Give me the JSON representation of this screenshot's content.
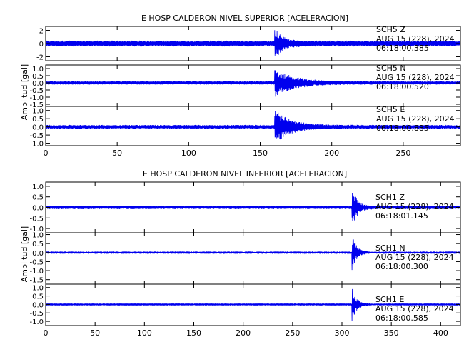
{
  "colors": {
    "trace": "#0000ee",
    "axes": "#000000",
    "background": "#ffffff"
  },
  "chart_data": [
    {
      "type": "line",
      "title": "E HOSP CALDERON NIVEL SUPERIOR [ACELERACION]",
      "ylabel": "Amplitud [gal]",
      "xlabel": "",
      "xlim": [
        0,
        290
      ],
      "x_ticks": [
        "0",
        "50",
        "100",
        "150",
        "200",
        "250"
      ],
      "traces": [
        {
          "station": "SCH5",
          "component": "Z",
          "date": "AUG 15 (228), 2024",
          "time": "06:18:00.385",
          "ylim": [
            -2.6,
            2.6
          ],
          "y_ticks": [
            "2",
            "0",
            "-2"
          ],
          "noise": 0.45,
          "event_x": 160,
          "peak": 2.4,
          "decay_s": 5
        },
        {
          "station": "SCH5",
          "component": "N",
          "date": "AUG 15 (228), 2024",
          "time": "06:18:00.520",
          "ylim": [
            -1.65,
            1.25
          ],
          "y_ticks": [
            "1.0",
            "0.5",
            "0.0",
            "-0.5",
            "-1.0",
            "-1.5"
          ],
          "noise": 0.12,
          "event_x": 160,
          "peak": 1.0,
          "decay_s": 13
        },
        {
          "station": "SCH5",
          "component": "E",
          "date": "AUG 15 (228), 2024",
          "time": "06:18:00.885",
          "ylim": [
            -1.15,
            1.25
          ],
          "y_ticks": [
            "1.0",
            "0.5",
            "0.0",
            "-0.5",
            "-1.0"
          ],
          "noise": 0.12,
          "event_x": 160,
          "peak": 1.0,
          "decay_s": 11
        }
      ]
    },
    {
      "type": "line",
      "title": "E HOSP CALDERON NIVEL INFERIOR [ACELERACION]",
      "ylabel": "Amplitud [gal]",
      "xlabel": "",
      "xlim": [
        0,
        420
      ],
      "x_ticks": [
        "0",
        "50",
        "100",
        "150",
        "200",
        "250",
        "300",
        "350",
        "400"
      ],
      "traces": [
        {
          "station": "SCH1",
          "component": "Z",
          "date": "AUG 15 (228), 2024",
          "time": "06:18:01.145",
          "ylim": [
            -1.2,
            1.2
          ],
          "y_ticks": [
            "1.0",
            "0.5",
            "0.0",
            "-0.5",
            "-1.0"
          ],
          "noise": 0.08,
          "event_x": 310,
          "peak": 1.0,
          "decay_s": 5
        },
        {
          "station": "SCH1",
          "component": "N",
          "date": "AUG 15 (228), 2024",
          "time": "06:18:00.300",
          "ylim": [
            -1.75,
            1.1
          ],
          "y_ticks": [
            "1.0",
            "0.5",
            "0.0",
            "-0.5",
            "-1.0",
            "-1.5"
          ],
          "noise": 0.04,
          "event_x": 310,
          "peak": 1.0,
          "decay_s": 5
        },
        {
          "station": "SCH1",
          "component": "E",
          "date": "AUG 15 (228), 2024",
          "time": "06:18:00.585",
          "ylim": [
            -1.25,
            1.2
          ],
          "y_ticks": [
            "1.0",
            "0.5",
            "0.0",
            "-0.5",
            "-1.0"
          ],
          "noise": 0.04,
          "event_x": 310,
          "peak": 1.0,
          "decay_s": 5
        }
      ]
    }
  ]
}
